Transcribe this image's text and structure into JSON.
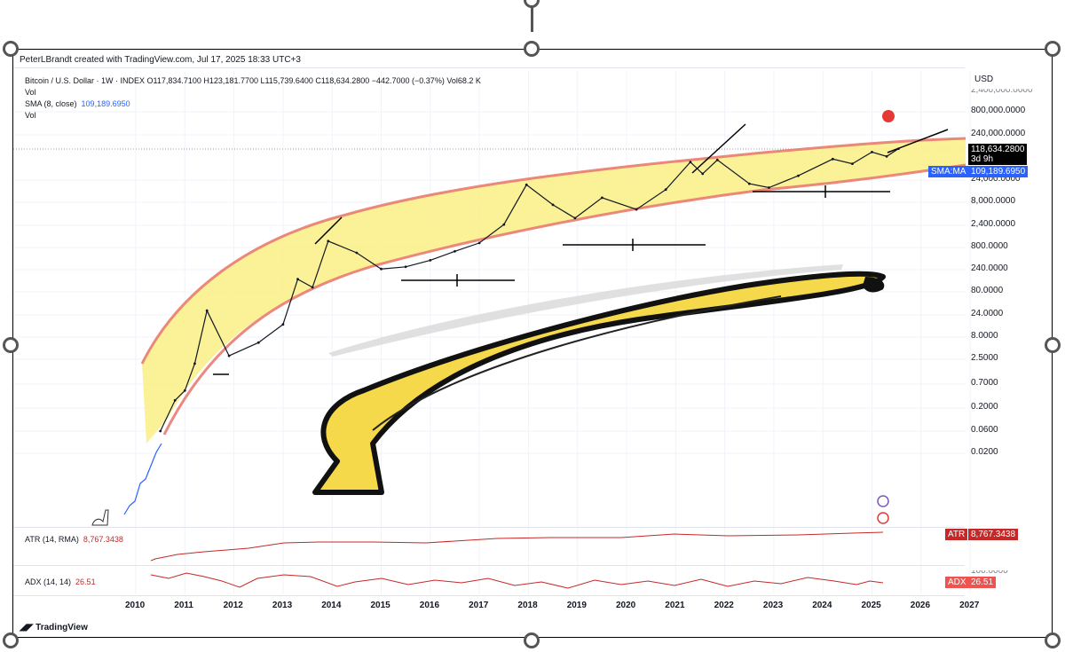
{
  "header": {
    "credit": "PeterLBrandt created with TradingView.com, Jul 17, 2025 18:33 UTC+3"
  },
  "legend": {
    "symbol_line": "Bitcoin / U.S. Dollar · 1W · INDEX O117,834.7100 H123,181.7700 L115,739.6400 C118,634.2800 −442.7000 (−0.37%) Vol68.2 K",
    "vol1": "Vol",
    "sma_label": "SMA (8, close)",
    "sma_value": "109,189.6950",
    "vol2": "Vol",
    "atr_label": "ATR (14, RMA)",
    "atr_value": "8,767.3438",
    "adx_label": "ADX (14, 14)",
    "adx_value": "26.51"
  },
  "price_axis": {
    "currency": "USD",
    "top_partial": "2,400,000.0000",
    "labels": [
      "800,000.0000",
      "240,000.0000",
      "24,000.0000",
      "8,000.0000",
      "2,400.0000",
      "800.0000",
      "240.0000",
      "80.0000",
      "24.0000",
      "8.0000",
      "2.5000",
      "0.7000",
      "0.2000",
      "0.0600",
      "0.0200"
    ],
    "last_price": "118,634.2800",
    "countdown": "3d 9h",
    "sma_tag": "SMA:MA",
    "sma_tag_value": "109,189.6950",
    "adx_pane_top": "100.0000"
  },
  "indicator_tags": {
    "atr_tag": "ATR",
    "atr_value": "8,767.3438",
    "adx_tag": "ADX",
    "adx_value": "26.51"
  },
  "time_axis": [
    "2010",
    "2011",
    "2012",
    "2013",
    "2014",
    "2015",
    "2016",
    "2017",
    "2018",
    "2019",
    "2020",
    "2021",
    "2022",
    "2023",
    "2024",
    "2025",
    "2026",
    "2027"
  ],
  "footer": {
    "brand": "TradingView"
  },
  "colors": {
    "banana": "#f5d94a",
    "channel_band": "#fbef8c",
    "channel_edge": "#e8746a",
    "price": "#131722",
    "sma": "#2962ff",
    "atr": "#c62828"
  },
  "chart_data": {
    "type": "line",
    "title": "Bitcoin / U.S. Dollar · 1W · INDEX",
    "scale": "log",
    "xlim": [
      2010,
      2027
    ],
    "ylim": [
      0.02,
      2400000
    ],
    "series": [
      {
        "name": "Bitcoin / U.S. Dollar",
        "x": [
          2010.5,
          2010.8,
          2011.0,
          2011.2,
          2011.45,
          2011.9,
          2012.5,
          2013.0,
          2013.3,
          2013.6,
          2013.92,
          2014.5,
          2015.0,
          2015.5,
          2016.0,
          2016.5,
          2017.0,
          2017.5,
          2017.96,
          2018.5,
          2018.95,
          2019.5,
          2020.2,
          2020.8,
          2021.3,
          2021.55,
          2021.85,
          2022.5,
          2022.9,
          2023.5,
          2024.2,
          2024.6,
          2025.0,
          2025.3,
          2025.54
        ],
        "y": [
          0.06,
          0.3,
          0.5,
          2,
          30,
          3,
          6,
          15,
          150,
          100,
          1100,
          600,
          250,
          280,
          400,
          650,
          1000,
          2500,
          19000,
          7000,
          3500,
          10000,
          5500,
          15000,
          60000,
          33000,
          67000,
          20000,
          16500,
          30000,
          70000,
          55000,
          100000,
          80000,
          118634.28
        ]
      }
    ],
    "indicators": {
      "SMA (8, close)": 109189.695,
      "ATR (14, RMA)": 8767.3438,
      "ADX (14, 14)": 26.51
    }
  }
}
